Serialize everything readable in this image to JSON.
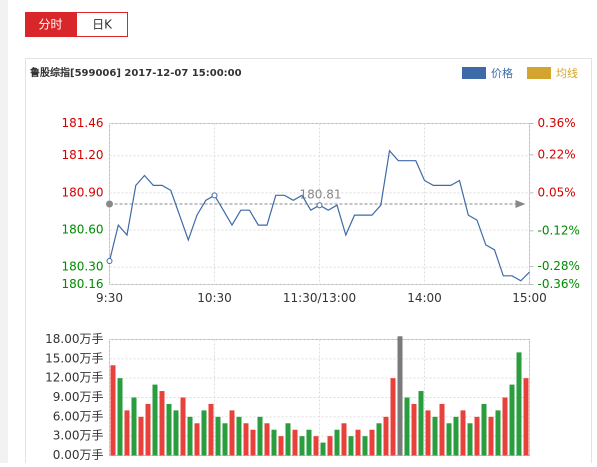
{
  "tabs": [
    "分时",
    "日K"
  ],
  "chart_data": {
    "type": "line",
    "title": "鲁股综指[599006] 2017-12-07 15:00:00",
    "legend": [
      {
        "name": "价格",
        "color": "#3d6aa8"
      },
      {
        "name": "均线",
        "color": "#d4a52e"
      }
    ],
    "pre_close": 180.81,
    "x": [
      0,
      5,
      10,
      15,
      20,
      25,
      30,
      35,
      40,
      45,
      50,
      55,
      60,
      65,
      70,
      75,
      80,
      85,
      90,
      95,
      100,
      105,
      110,
      115,
      120,
      125,
      130,
      135,
      140,
      145,
      150,
      155,
      160,
      165,
      170,
      175,
      180,
      185,
      190,
      195,
      200,
      205,
      210,
      215,
      220,
      225,
      230,
      235,
      240
    ],
    "series": [
      {
        "name": "价格",
        "color": "#3d6aa8",
        "values": [
          180.35,
          180.64,
          180.56,
          180.96,
          181.04,
          180.96,
          180.96,
          180.92,
          180.72,
          180.52,
          180.72,
          180.84,
          180.88,
          180.76,
          180.64,
          180.76,
          180.76,
          180.64,
          180.64,
          180.88,
          180.88,
          180.84,
          180.88,
          180.76,
          180.8,
          180.76,
          180.8,
          180.56,
          180.72,
          180.72,
          180.72,
          180.8,
          181.24,
          181.16,
          181.16,
          181.16,
          181.0,
          180.96,
          180.96,
          180.96,
          181.0,
          180.72,
          180.68,
          180.48,
          180.44,
          180.23,
          180.23,
          180.19,
          180.26
        ]
      }
    ],
    "xlim": [
      0,
      240
    ],
    "xticks": [
      {
        "value": 0,
        "label": "9:30"
      },
      {
        "value": 60,
        "label": "10:30"
      },
      {
        "value": 120,
        "label": "11:30/13:00"
      },
      {
        "value": 180,
        "label": "14:00"
      },
      {
        "value": 240,
        "label": "15:00"
      }
    ],
    "ylim": [
      180.16,
      181.46
    ],
    "yticks": [
      181.46,
      {
        "value": 181.2,
        "label": "181.20"
      },
      {
        "value": 180.9,
        "label": "180.90"
      },
      {
        "value": 180.6,
        "label": "180.60"
      },
      {
        "value": 180.3,
        "label": "180.30"
      },
      180.16
    ],
    "y2lim": [
      -0.36,
      0.36
    ],
    "y2ticks": [
      {
        "value": 0.36,
        "label": "0.36%"
      },
      {
        "value": 0.22,
        "label": "0.22%"
      },
      {
        "value": 0.05,
        "label": "0.05%"
      },
      {
        "value": -0.12,
        "label": "-0.12%"
      },
      {
        "value": -0.28,
        "label": "-0.28%"
      },
      {
        "value": -0.36,
        "label": "-0.36%"
      }
    ],
    "grid": true,
    "up_color": "#d40000",
    "down_color": "#008a00",
    "volume": {
      "type": "bar",
      "values": [
        14,
        12,
        7,
        9,
        6,
        8,
        11,
        10,
        8,
        7,
        9,
        6,
        5,
        7,
        8,
        6,
        5,
        7,
        6,
        5,
        4,
        6,
        5,
        4,
        3,
        5,
        4,
        3,
        4,
        3,
        2,
        3,
        4,
        5,
        3,
        4,
        3,
        4,
        5,
        6,
        12,
        18.5,
        9,
        8,
        10,
        7,
        6,
        8,
        5,
        6,
        7,
        5,
        6,
        8,
        6,
        7,
        9,
        11,
        16,
        12
      ],
      "colors": [
        "#e8413b",
        "#2a9d3f",
        "#e8413b",
        "#2a9d3f",
        "#e8413b",
        "#e8413b",
        "#2a9d3f",
        "#e8413b",
        "#2a9d3f",
        "#2a9d3f",
        "#e8413b",
        "#2a9d3f",
        "#e8413b",
        "#2a9d3f",
        "#e8413b",
        "#2a9d3f",
        "#2a9d3f",
        "#e8413b",
        "#2a9d3f",
        "#e8413b",
        "#e8413b",
        "#2a9d3f",
        "#e8413b",
        "#2a9d3f",
        "#e8413b",
        "#2a9d3f",
        "#e8413b",
        "#2a9d3f",
        "#2a9d3f",
        "#e8413b",
        "#2a9d3f",
        "#e8413b",
        "#2a9d3f",
        "#e8413b",
        "#2a9d3f",
        "#e8413b",
        "#2a9d3f",
        "#e8413b",
        "#2a9d3f",
        "#e8413b",
        "#e8413b",
        "#7a7a7a",
        "#2a9d3f",
        "#e8413b",
        "#2a9d3f",
        "#e8413b",
        "#2a9d3f",
        "#e8413b",
        "#2a9d3f",
        "#2a9d3f",
        "#e8413b",
        "#2a9d3f",
        "#e8413b",
        "#2a9d3f",
        "#e8413b",
        "#2a9d3f",
        "#e8413b",
        "#2a9d3f",
        "#2a9d3f",
        "#e8413b"
      ],
      "ylim": [
        0,
        18
      ],
      "yticks": [
        {
          "value": 18,
          "label": "18.00万手"
        },
        {
          "value": 15,
          "label": "15.00万手"
        },
        {
          "value": 12,
          "label": "12.00万手"
        },
        {
          "value": 9,
          "label": "9.00万手"
        },
        {
          "value": 6,
          "label": "6.00万手"
        },
        {
          "value": 3,
          "label": "3.00万手"
        },
        {
          "value": 0,
          "label": "0.00万手"
        }
      ]
    }
  }
}
